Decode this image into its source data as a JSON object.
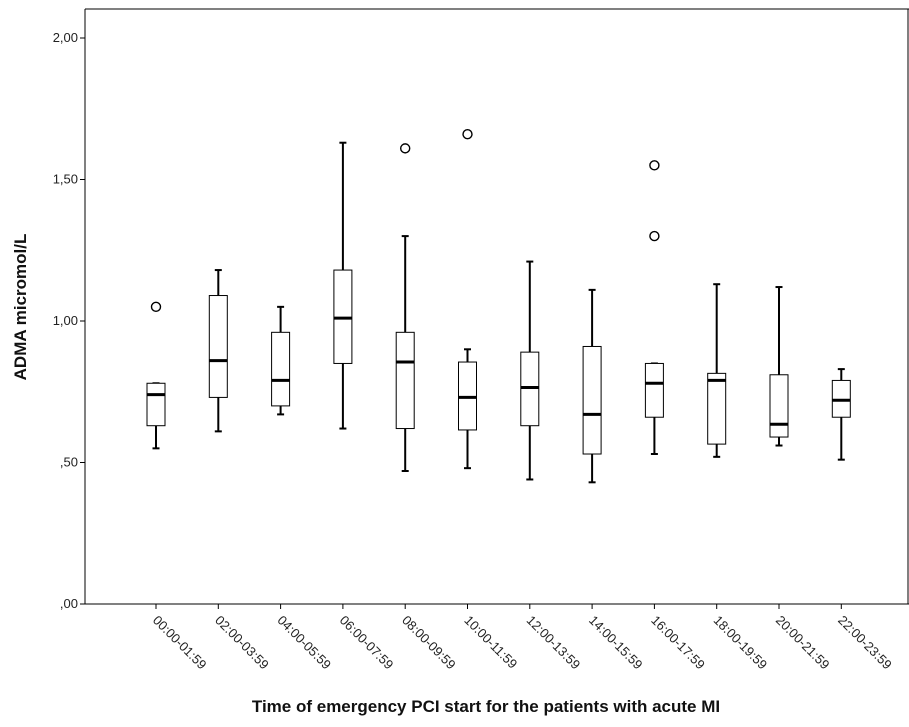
{
  "chart_data": {
    "type": "boxplot",
    "xlabel": "Time of emergency PCI start for the patients with acute MI",
    "ylabel": "ADMA micromol/L",
    "ylim": [
      0,
      2.0
    ],
    "yticks": [
      {
        "value": 0.0,
        "label": ",00"
      },
      {
        "value": 0.5,
        "label": ",50"
      },
      {
        "value": 1.0,
        "label": "1,00"
      },
      {
        "value": 1.5,
        "label": "1,50"
      },
      {
        "value": 2.0,
        "label": "2,00"
      }
    ],
    "grid": false,
    "categories": [
      "00:00-01:59",
      "02:00-03:59",
      "04:00-05:59",
      "06:00-07:59",
      "08:00-09:59",
      "10:00-11:59",
      "12:00-13:59",
      "14:00-15:59",
      "16:00-17:59",
      "18:00-19:59",
      "20:00-21:59",
      "22:00-23:59"
    ],
    "boxes": [
      {
        "min": 0.55,
        "q1": 0.63,
        "median": 0.74,
        "q3": 0.78,
        "max": 0.78,
        "outliers": [
          1.05
        ]
      },
      {
        "min": 0.61,
        "q1": 0.73,
        "median": 0.86,
        "q3": 1.09,
        "max": 1.18,
        "outliers": []
      },
      {
        "min": 0.67,
        "q1": 0.7,
        "median": 0.79,
        "q3": 0.96,
        "max": 1.05,
        "outliers": []
      },
      {
        "min": 0.62,
        "q1": 0.85,
        "median": 1.01,
        "q3": 1.18,
        "max": 1.63,
        "outliers": []
      },
      {
        "min": 0.47,
        "q1": 0.62,
        "median": 0.855,
        "q3": 0.96,
        "max": 1.3,
        "outliers": [
          1.61
        ]
      },
      {
        "min": 0.48,
        "q1": 0.615,
        "median": 0.73,
        "q3": 0.855,
        "max": 0.9,
        "outliers": [
          1.66
        ]
      },
      {
        "min": 0.44,
        "q1": 0.63,
        "median": 0.765,
        "q3": 0.89,
        "max": 1.21,
        "outliers": []
      },
      {
        "min": 0.43,
        "q1": 0.53,
        "median": 0.67,
        "q3": 0.91,
        "max": 1.11,
        "outliers": []
      },
      {
        "min": 0.53,
        "q1": 0.66,
        "median": 0.78,
        "q3": 0.85,
        "max": 0.85,
        "outliers": [
          1.55,
          1.3
        ]
      },
      {
        "min": 0.52,
        "q1": 0.565,
        "median": 0.79,
        "q3": 0.815,
        "max": 1.13,
        "outliers": []
      },
      {
        "min": 0.56,
        "q1": 0.59,
        "median": 0.635,
        "q3": 0.81,
        "max": 1.12,
        "outliers": []
      },
      {
        "min": 0.51,
        "q1": 0.66,
        "median": 0.72,
        "q3": 0.79,
        "max": 0.83,
        "outliers": []
      }
    ]
  }
}
